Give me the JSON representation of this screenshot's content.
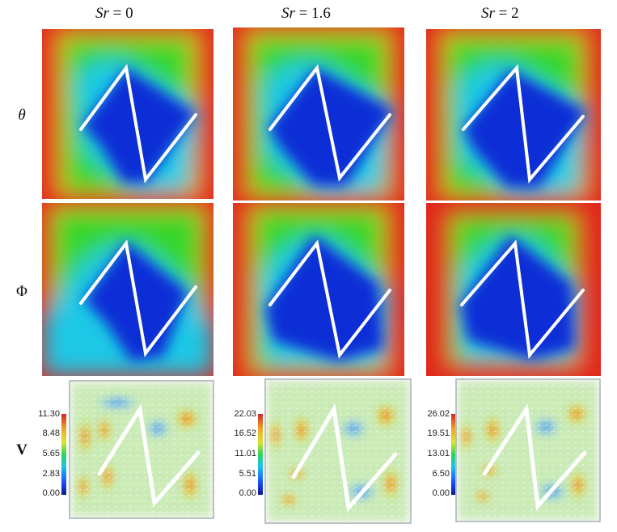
{
  "columns": [
    {
      "label_var": "Sr",
      "label_eq": " = 0"
    },
    {
      "label_var": "Sr",
      "label_eq": " = 1.6"
    },
    {
      "label_var": "Sr",
      "label_eq": " = 2"
    }
  ],
  "rows": [
    {
      "symbol": "θ"
    },
    {
      "symbol": "Φ"
    },
    {
      "symbol": "V"
    }
  ],
  "velocity_colorbars": [
    {
      "ticks": [
        "11.30",
        "8.48",
        "5.65",
        "2.83",
        "0.00"
      ]
    },
    {
      "ticks": [
        "22.03",
        "16.52",
        "11.01",
        "5.51",
        "0.00"
      ]
    },
    {
      "ticks": [
        "26.02",
        "19.51",
        "13.01",
        "6.50",
        "0.00"
      ]
    }
  ],
  "colors": {
    "cold": "#0a2fd6",
    "cyan": "#1ec8e6",
    "green": "#34d62a",
    "yellow": "#e2e61e",
    "hot": "#e0261e",
    "fin": "#ffffff",
    "vector_bg": "#f4f7f2"
  },
  "icons": [
    "z-shaped-fin"
  ]
}
